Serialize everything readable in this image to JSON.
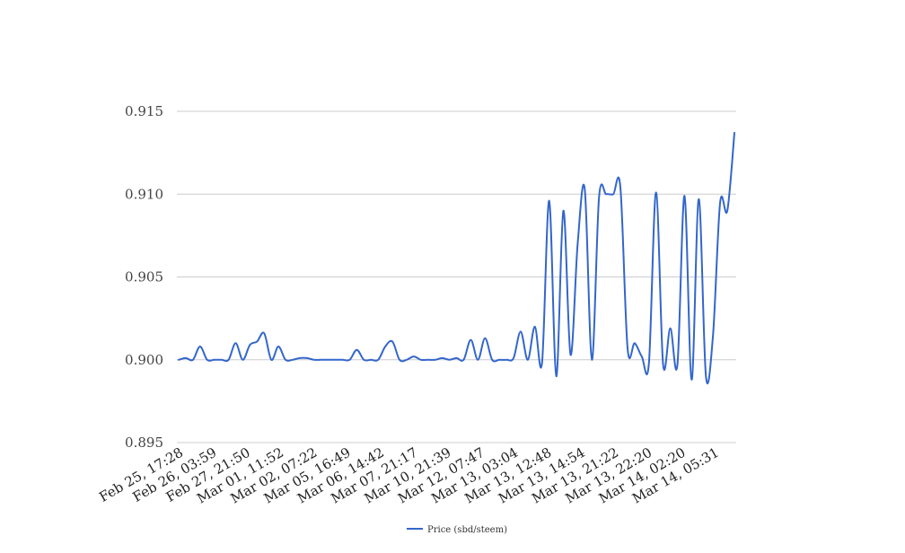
{
  "chart_data": {
    "type": "line",
    "title": "",
    "xlabel": "",
    "ylabel": "",
    "ylim": [
      0.895,
      0.915
    ],
    "grid": true,
    "legend_position": "bottom-center",
    "line_color": "#3366cc",
    "y_ticks": [
      "0.895",
      "0.900",
      "0.905",
      "0.910",
      "0.915"
    ],
    "x_tick_labels": [
      "Feb 25, 17:28",
      "Feb 26, 03:59",
      "Feb 27, 21:50",
      "Mar 01, 11:52",
      "Mar 02, 07:22",
      "Mar 05, 16:49",
      "Mar 06, 14:42",
      "Mar 07, 21:17",
      "Mar 10, 21:39",
      "Mar 12, 07:47",
      "Mar 13, 03:04",
      "Mar 13, 12:48",
      "Mar 13, 14:54",
      "Mar 13, 21:22",
      "Mar 13, 22:20",
      "Mar 14, 02:20",
      "Mar 14, 05:31"
    ],
    "series": [
      {
        "name": "Price (sbd/steem)",
        "values": [
          0.9,
          0.9001,
          0.9,
          0.9008,
          0.9,
          0.9,
          0.9,
          0.9,
          0.901,
          0.9,
          0.9009,
          0.9011,
          0.9016,
          0.9,
          0.9008,
          0.9,
          0.9,
          0.9001,
          0.9001,
          0.9,
          0.9,
          0.9,
          0.9,
          0.9,
          0.9,
          0.9006,
          0.9,
          0.9,
          0.9,
          0.9008,
          0.9011,
          0.9,
          0.9,
          0.9002,
          0.9,
          0.9,
          0.9,
          0.9001,
          0.9,
          0.9001,
          0.9,
          0.9012,
          0.9,
          0.9013,
          0.9,
          0.9,
          0.9,
          0.9001,
          0.9017,
          0.9,
          0.902,
          0.8998,
          0.9096,
          0.899,
          0.909,
          0.9003,
          0.907,
          0.9103,
          0.9,
          0.9098,
          0.91,
          0.91,
          0.9104,
          0.9007,
          0.901,
          0.9002,
          0.8998,
          0.9101,
          0.8997,
          0.9019,
          0.8997,
          0.9099,
          0.8988,
          0.9097,
          0.899,
          0.9015,
          0.9095,
          0.909,
          0.9137
        ]
      }
    ]
  }
}
